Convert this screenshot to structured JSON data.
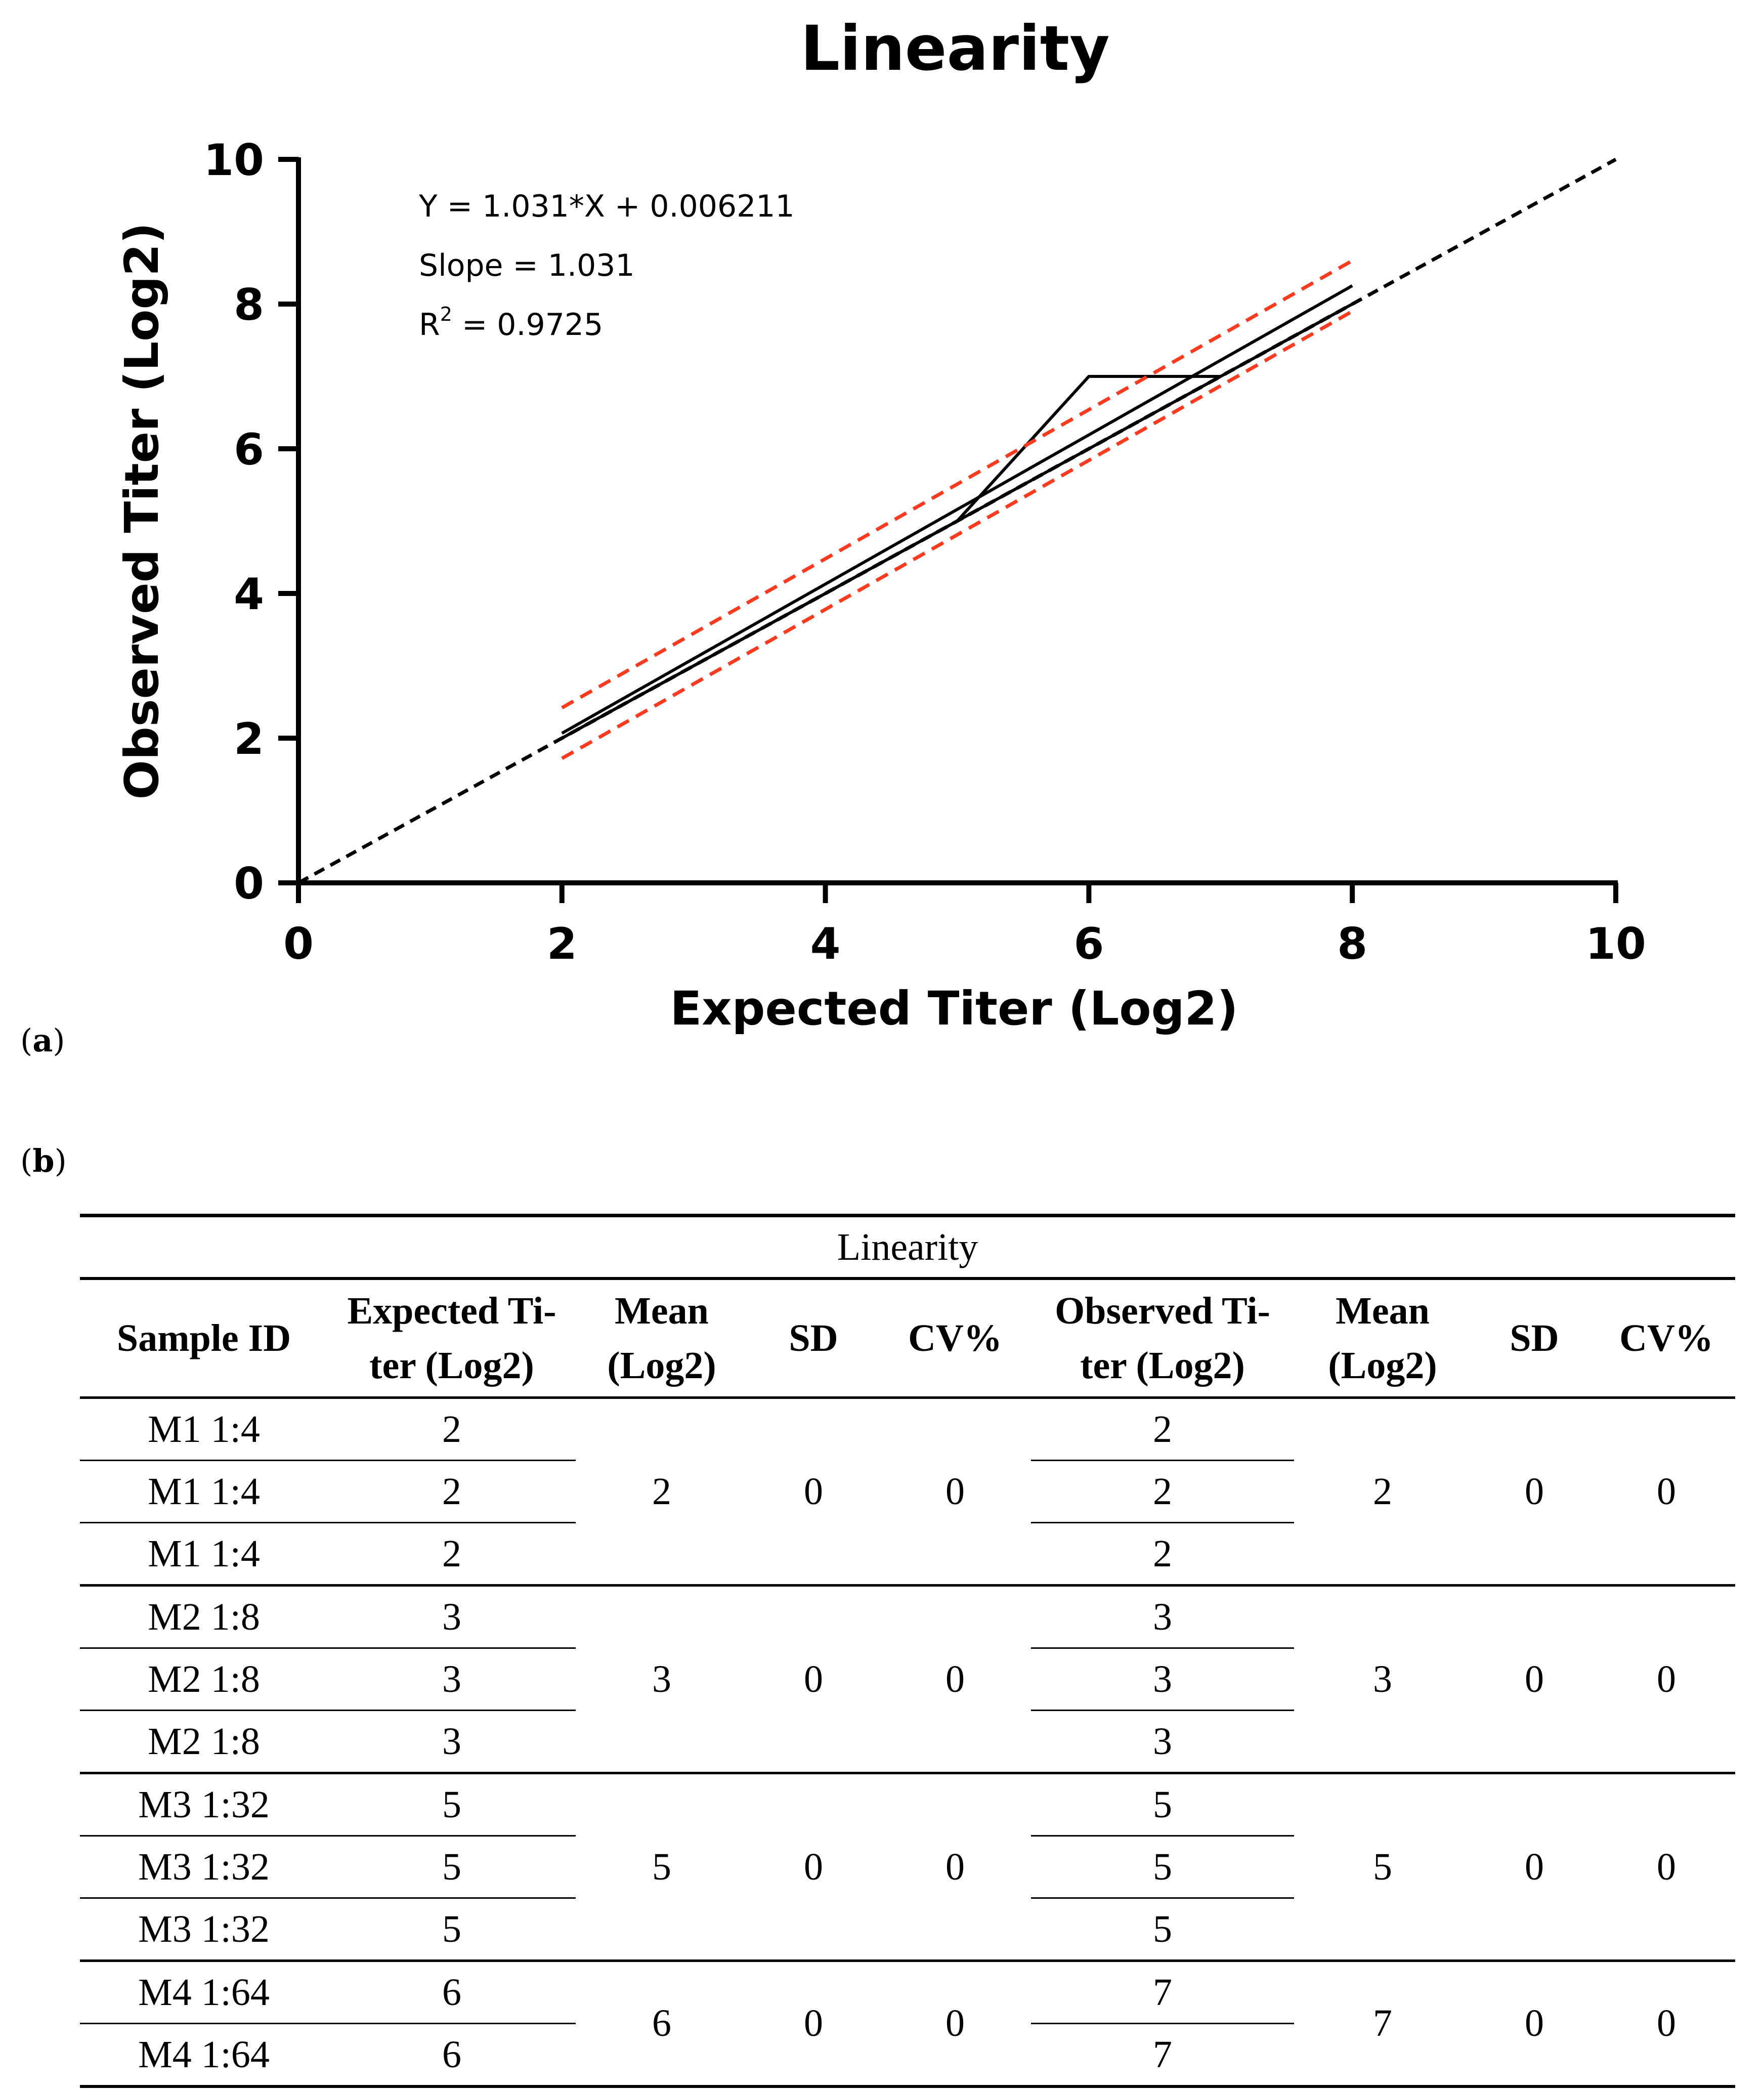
{
  "chart_data": {
    "type": "line",
    "title": "Linearity",
    "xlabel": "Expected Titer (Log2)",
    "ylabel": "Observed Titer (Log2)",
    "xlim": [
      0,
      10
    ],
    "ylim": [
      0,
      10
    ],
    "xticks": [
      "0",
      "2",
      "4",
      "6",
      "8",
      "10"
    ],
    "yticks": [
      "0",
      "2",
      "4",
      "6",
      "8",
      "10"
    ],
    "annotations": {
      "equation": "Y = 1.031*X + 0.006211",
      "slope": "Slope = 1.031",
      "r2_prefix": "R",
      "r2_sup": "2",
      "r2_suffix": " = 0.9725"
    },
    "series": [
      {
        "name": "identity",
        "style": "dashed",
        "color": "#000000",
        "x": [
          0,
          10
        ],
        "y": [
          0,
          10
        ]
      },
      {
        "name": "observed-1",
        "style": "solid",
        "color": "#000000",
        "x": [
          2,
          3,
          5,
          6,
          7,
          8
        ],
        "y": [
          2,
          3,
          5,
          6,
          7,
          8
        ]
      },
      {
        "name": "observed-2",
        "style": "solid",
        "color": "#000000",
        "x": [
          2,
          3,
          5,
          6,
          7
        ],
        "y": [
          2,
          3,
          5,
          7,
          7
        ]
      },
      {
        "name": "regression",
        "style": "solid",
        "color": "#000000",
        "x": [
          2,
          8
        ],
        "y": [
          2.068,
          8.254
        ]
      },
      {
        "name": "ci-upper",
        "style": "dashed",
        "color": "#ff3b1f",
        "x": [
          2,
          8
        ],
        "y": [
          2.42,
          8.6
        ]
      },
      {
        "name": "ci-lower",
        "style": "dashed",
        "color": "#ff3b1f",
        "x": [
          2,
          8
        ],
        "y": [
          1.72,
          7.9
        ]
      }
    ]
  },
  "panels": {
    "a_paren_open": "(",
    "a": "a",
    "a_paren_close": ")",
    "b_paren_open": "(",
    "b": "b",
    "b_paren_close": ")"
  },
  "table": {
    "title": "Linearity",
    "headers": {
      "sample_id": "Sample ID",
      "expected_1": "Expected Ti-",
      "expected_2": "ter (Log2)",
      "mean1_1": "Mean",
      "mean1_2": "(Log2)",
      "sd1": "SD",
      "cv1": "CV%",
      "observed_1": "Observed Ti-",
      "observed_2": "ter (Log2)",
      "mean2_1": "Mean",
      "mean2_2": "(Log2)",
      "sd2": "SD",
      "cv2": "CV%"
    },
    "groups": [
      {
        "rows": [
          {
            "id": "M1 1:4",
            "expected": "2",
            "observed": "2"
          },
          {
            "id": "M1 1:4",
            "expected": "2",
            "observed": "2"
          },
          {
            "id": "M1 1:4",
            "expected": "2",
            "observed": "2"
          }
        ],
        "mean_exp": "2",
        "sd_exp": "0",
        "cv_exp": "0",
        "mean_obs": "2",
        "sd_obs": "0",
        "cv_obs": "0"
      },
      {
        "rows": [
          {
            "id": "M2 1:8",
            "expected": "3",
            "observed": "3"
          },
          {
            "id": "M2 1:8",
            "expected": "3",
            "observed": "3"
          },
          {
            "id": "M2 1:8",
            "expected": "3",
            "observed": "3"
          }
        ],
        "mean_exp": "3",
        "sd_exp": "0",
        "cv_exp": "0",
        "mean_obs": "3",
        "sd_obs": "0",
        "cv_obs": "0"
      },
      {
        "rows": [
          {
            "id": "M3 1:32",
            "expected": "5",
            "observed": "5"
          },
          {
            "id": "M3 1:32",
            "expected": "5",
            "observed": "5"
          },
          {
            "id": "M3 1:32",
            "expected": "5",
            "observed": "5"
          }
        ],
        "mean_exp": "5",
        "sd_exp": "0",
        "cv_exp": "0",
        "mean_obs": "5",
        "sd_obs": "0",
        "cv_obs": "0"
      },
      {
        "rows": [
          {
            "id": "M4 1:64",
            "expected": "6",
            "observed": "7"
          },
          {
            "id": "M4 1:64",
            "expected": "6",
            "observed": "7"
          }
        ],
        "mean_exp": "6",
        "sd_exp": "0",
        "cv_exp": "0",
        "mean_obs": "7",
        "sd_obs": "0",
        "cv_obs": "0"
      }
    ]
  }
}
